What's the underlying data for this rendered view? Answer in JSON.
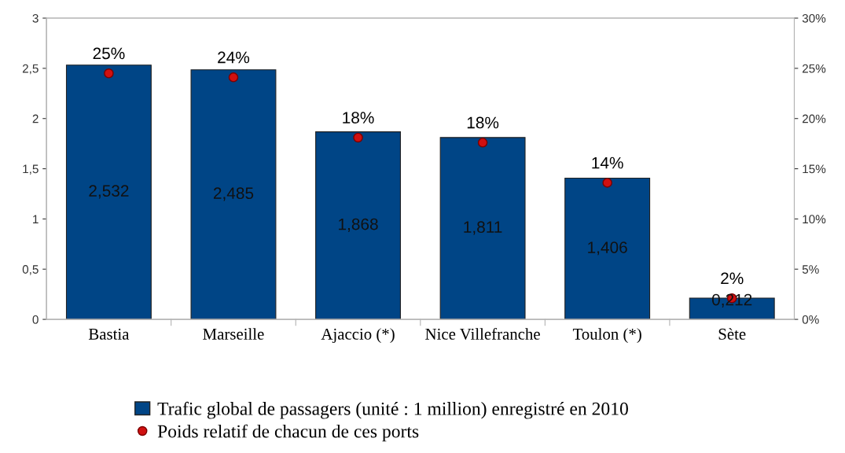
{
  "chart_data": {
    "type": "bar",
    "categories": [
      "Bastia",
      "Marseille",
      "Ajaccio (*)",
      "Nice Villefranche",
      "Toulon (*)",
      "Sète"
    ],
    "series": [
      {
        "name": "Trafic global de passagers (unité : 1 million) enregistré en 2010",
        "color": "#004586",
        "values": [
          2.532,
          2.485,
          1.868,
          1.811,
          1.406,
          0.212
        ],
        "value_labels": [
          "2,532",
          "2,485",
          "1,868",
          "1,811",
          "1,406",
          "0,212"
        ]
      },
      {
        "name": "Poids relatif de chacun de ces ports",
        "type": "scatter",
        "axis": "y2",
        "color": "#d01010",
        "marker": "circle",
        "values": [
          24.5,
          24.1,
          18.1,
          17.6,
          13.6,
          2.1
        ],
        "value_labels": [
          "25%",
          "24%",
          "18%",
          "18%",
          "14%",
          "2%"
        ]
      }
    ],
    "ylim": [
      0,
      3
    ],
    "yticks": [
      0,
      {
        "value": 0.5,
        "label": "0,5"
      },
      1,
      {
        "value": 1.5,
        "label": "1,5"
      },
      2,
      {
        "value": 2.5,
        "label": "2,5"
      },
      3
    ],
    "y2lim": [
      0,
      30
    ],
    "y2ticks": [
      {
        "value": 0,
        "label": "0%"
      },
      {
        "value": 5,
        "label": "5%"
      },
      {
        "value": 10,
        "label": "10%"
      },
      {
        "value": 15,
        "label": "15%"
      },
      {
        "value": 20,
        "label": "20%"
      },
      {
        "value": 25,
        "label": "25%"
      },
      {
        "value": 30,
        "label": "30%"
      }
    ],
    "grid": false,
    "legend": "bottom"
  }
}
